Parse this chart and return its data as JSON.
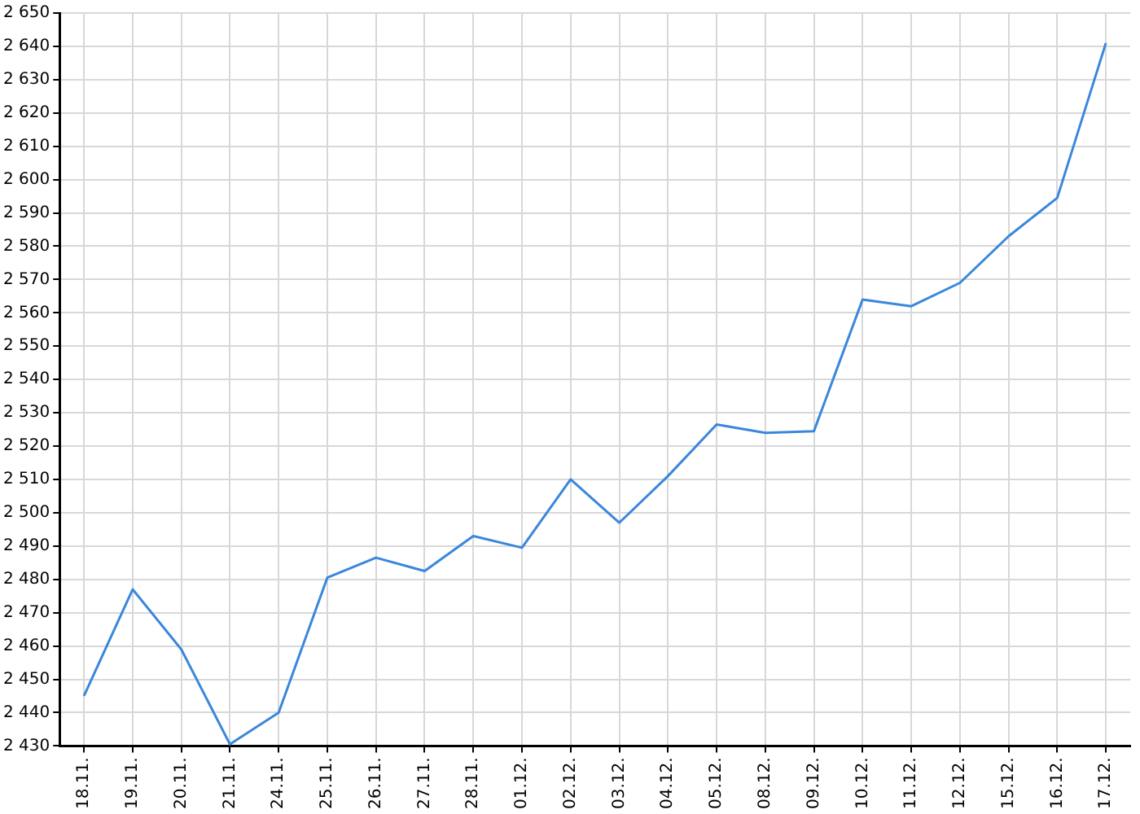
{
  "chart_data": {
    "type": "line",
    "categories": [
      "18.11.",
      "19.11.",
      "20.11.",
      "21.11.",
      "24.11.",
      "25.11.",
      "26.11.",
      "27.11.",
      "28.11.",
      "01.12.",
      "02.12.",
      "03.12.",
      "04.12.",
      "05.12.",
      "08.12.",
      "09.12.",
      "10.12.",
      "11.12.",
      "12.12.",
      "15.12.",
      "16.12.",
      "17.12."
    ],
    "series": [
      {
        "color": "#3a87db",
        "values": [
          2445,
          2477,
          2459,
          2430.5,
          2440,
          2480.5,
          2486.5,
          2482.5,
          2493,
          2489.5,
          2510,
          2497,
          2511,
          2526.5,
          2524,
          2524.5,
          2564,
          2562,
          2569,
          2583,
          2594.5,
          2641
        ]
      }
    ],
    "ylim": [
      2430,
      2650
    ],
    "yticks": [
      {
        "value": 2430,
        "label": "2 430"
      },
      {
        "value": 2440,
        "label": "2 440"
      },
      {
        "value": 2450,
        "label": "2 450"
      },
      {
        "value": 2460,
        "label": "2 460"
      },
      {
        "value": 2470,
        "label": "2 470"
      },
      {
        "value": 2480,
        "label": "2 480"
      },
      {
        "value": 2490,
        "label": "2 490"
      },
      {
        "value": 2500,
        "label": "2 500"
      },
      {
        "value": 2510,
        "label": "2 510"
      },
      {
        "value": 2520,
        "label": "2 520"
      },
      {
        "value": 2530,
        "label": "2 530"
      },
      {
        "value": 2540,
        "label": "2 540"
      },
      {
        "value": 2550,
        "label": "2 550"
      },
      {
        "value": 2560,
        "label": "2 560"
      },
      {
        "value": 2570,
        "label": "2 570"
      },
      {
        "value": 2580,
        "label": "2 580"
      },
      {
        "value": 2590,
        "label": "2 590"
      },
      {
        "value": 2600,
        "label": "2 600"
      },
      {
        "value": 2610,
        "label": "2 610"
      },
      {
        "value": 2620,
        "label": "2 620"
      },
      {
        "value": 2630,
        "label": "2 630"
      },
      {
        "value": 2640,
        "label": "2 640"
      },
      {
        "value": 2650,
        "label": "2 650"
      }
    ],
    "grid": true,
    "legend": false,
    "marker": "none",
    "line_style": "solid"
  }
}
